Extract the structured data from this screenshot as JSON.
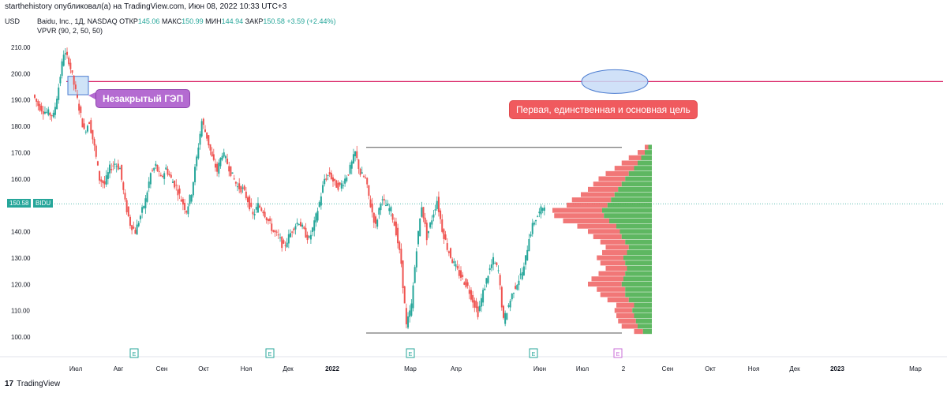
{
  "header": {
    "meta": "starthehistory опубликовал(а) на TradingView.com, Июн 08, 2022 10:33 UTC+3"
  },
  "legend": {
    "currency": "USD",
    "symbol": "Baidu, Inc., 1Д, NASDAQ",
    "open_label": "ОТКР",
    "open": "145.06",
    "high_label": "МАКС",
    "high": "150.99",
    "low_label": "МИН",
    "low": "144.94",
    "close_label": "ЗАКР",
    "close": "150.58",
    "change": "+3.59 (+2.44%)",
    "indicator": "VPVR (90, 2, 50, 50)"
  },
  "annotations": {
    "gap": "Незакрытый ГЭП",
    "target": "Первая, единственная и основная цель"
  },
  "price_badge": "150.58",
  "ticker_badge": "BIDU",
  "footer": "TradingView",
  "colors": {
    "up": "#26a69a",
    "down": "#ef5350",
    "target_line": "#d81b60",
    "vp_up": "#4caf50",
    "vp_down": "#f06868"
  },
  "chart_data": {
    "type": "candlestick",
    "y_ticks": [
      100,
      110,
      120,
      130,
      140,
      150,
      160,
      170,
      180,
      190,
      200,
      210
    ],
    "y_tick_labels": [
      "100.00",
      "110.00",
      "120.00",
      "130.00",
      "140.00",
      "150.00",
      "160.00",
      "170.00",
      "180.00",
      "190.00",
      "200.00",
      "210.00"
    ],
    "ylim": [
      98,
      213
    ],
    "x_ticks": [
      "Июл",
      "Авг",
      "Сен",
      "Окт",
      "Ноя",
      "Дек",
      "2022",
      "Мар",
      "Апр",
      "Июн",
      "Июл",
      "2",
      "Сен",
      "Окт",
      "Ноя",
      "Дек",
      "2023",
      "Мар"
    ],
    "earnings_markers": [
      "E",
      "E",
      "E",
      "E",
      "E"
    ],
    "current_price": 150.58,
    "gap_level": 197,
    "range_high": 172,
    "range_low": 101.5,
    "price_path": [
      192,
      188,
      186,
      185,
      184,
      195,
      208,
      205,
      196,
      187,
      178,
      182,
      172,
      160,
      158,
      164,
      166,
      164,
      151,
      143,
      140,
      146,
      152,
      162,
      165,
      160,
      164,
      160,
      157,
      152,
      148,
      155,
      168,
      182,
      176,
      168,
      163,
      170,
      166,
      161,
      157,
      156,
      152,
      146,
      150,
      148,
      144,
      140,
      138,
      134,
      138,
      142,
      144,
      140,
      137,
      143,
      151,
      160,
      162,
      158,
      157,
      160,
      164,
      170,
      162,
      160,
      150,
      142,
      152,
      150,
      148,
      140,
      128,
      104,
      112,
      134,
      150,
      138,
      145,
      152,
      141,
      134,
      129,
      125,
      122,
      119,
      114,
      109,
      117,
      124,
      129,
      125,
      106,
      112,
      118,
      122,
      126,
      138,
      144,
      147,
      150.58
    ],
    "volume_profile": {
      "note": "Volume profile rows from 102 to 172, value = total volume share, green = buy portion",
      "levels": [
        102,
        104,
        106,
        108,
        110,
        112,
        114,
        116,
        118,
        120,
        122,
        124,
        126,
        128,
        130,
        132,
        134,
        136,
        138,
        140,
        142,
        144,
        146,
        148,
        150,
        152,
        154,
        156,
        158,
        160,
        162,
        164,
        166,
        168,
        170,
        172
      ],
      "total": [
        20,
        34,
        38,
        40,
        42,
        40,
        50,
        58,
        62,
        72,
        68,
        60,
        52,
        58,
        62,
        56,
        52,
        58,
        66,
        72,
        84,
        100,
        110,
        112,
        96,
        90,
        80,
        72,
        66,
        60,
        52,
        42,
        34,
        26,
        16,
        8
      ],
      "buy": [
        10,
        16,
        18,
        20,
        22,
        20,
        26,
        30,
        30,
        34,
        32,
        30,
        28,
        30,
        32,
        28,
        26,
        30,
        34,
        36,
        40,
        48,
        54,
        56,
        50,
        46,
        42,
        38,
        34,
        30,
        26,
        20,
        16,
        12,
        8,
        4
      ]
    }
  }
}
